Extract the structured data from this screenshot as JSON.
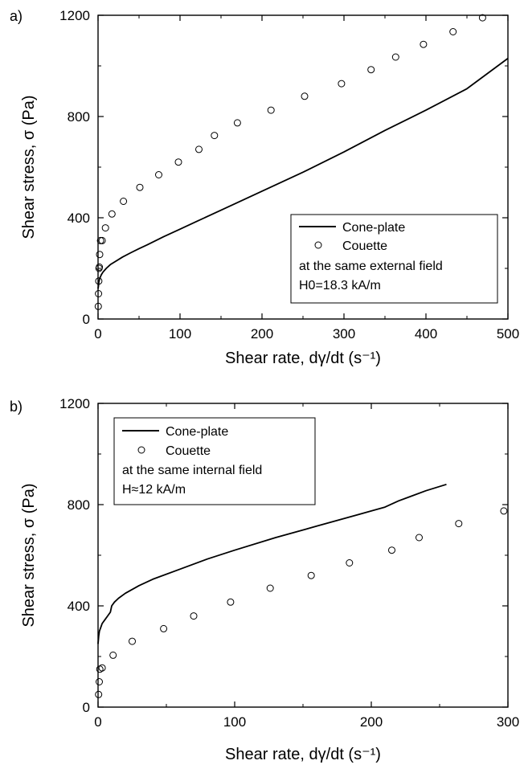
{
  "chart_data": [
    {
      "type": "line",
      "panel_label": "a)",
      "xlabel": "Shear rate, dγ/dt (s⁻¹)",
      "ylabel": "Shear stress, σ (Pa)",
      "xlim": [
        0,
        500
      ],
      "ylim": [
        0,
        1200
      ],
      "xticks": [
        0,
        100,
        200,
        300,
        400,
        500
      ],
      "yticks": [
        0,
        400,
        800,
        1200
      ],
      "legend_position": "bottom-right",
      "legend_note_1": "at the same external field",
      "legend_note_2": "H0=18.3 kA/m",
      "series": [
        {
          "name": "Cone-plate",
          "style": "line",
          "color": "#000000",
          "x": [
            0,
            0.5,
            1,
            2,
            4,
            6,
            10,
            15,
            20,
            30,
            40,
            50,
            60,
            80,
            100,
            120,
            150,
            200,
            250,
            300,
            350,
            400,
            450,
            500
          ],
          "y": [
            120,
            130,
            145,
            160,
            175,
            185,
            200,
            215,
            225,
            245,
            262,
            278,
            293,
            325,
            355,
            385,
            430,
            505,
            580,
            660,
            745,
            825,
            910,
            1030
          ]
        },
        {
          "name": "Couette",
          "style": "open-circle",
          "color": "#000000",
          "x": [
            0.3,
            0.6,
            0.9,
            1.2,
            1.6,
            2,
            3,
            5,
            9,
            17,
            31,
            51,
            74,
            98,
            123,
            142,
            170,
            211,
            252,
            297,
            333,
            363,
            397,
            433,
            469
          ],
          "y": [
            50,
            100,
            150,
            200,
            205,
            255,
            310,
            310,
            360,
            415,
            465,
            520,
            570,
            620,
            670,
            725,
            775,
            825,
            880,
            930,
            985,
            1035,
            1085,
            1135,
            1190
          ]
        }
      ]
    },
    {
      "type": "line",
      "panel_label": "b)",
      "xlabel": "Shear rate, dγ/dt (s⁻¹)",
      "ylabel": "Shear stress, σ (Pa)",
      "xlim": [
        0,
        300
      ],
      "ylim": [
        0,
        1200
      ],
      "xticks": [
        0,
        100,
        200,
        300
      ],
      "yticks": [
        0,
        400,
        800,
        1200
      ],
      "legend_position": "top-left",
      "legend_note_1": "at the same internal field",
      "legend_note_2": "H≈12 kA/m",
      "series": [
        {
          "name": "Cone-plate",
          "style": "line",
          "color": "#000000",
          "x": [
            0,
            0.5,
            1,
            2,
            3,
            5,
            7,
            9,
            10,
            12,
            15,
            20,
            30,
            40,
            60,
            80,
            100,
            130,
            160,
            190,
            210,
            220,
            240,
            255
          ],
          "y": [
            250,
            280,
            300,
            315,
            330,
            345,
            360,
            375,
            400,
            415,
            430,
            450,
            480,
            505,
            545,
            585,
            620,
            670,
            715,
            760,
            790,
            815,
            855,
            880
          ]
        },
        {
          "name": "Couette",
          "style": "open-circle",
          "color": "#000000",
          "x": [
            0.4,
            0.9,
            1.3,
            3,
            11,
            25,
            48,
            70,
            97,
            126,
            156,
            184,
            215,
            235,
            264,
            297
          ],
          "y": [
            50,
            100,
            150,
            155,
            205,
            260,
            310,
            360,
            415,
            470,
            520,
            570,
            620,
            670,
            725,
            775
          ]
        }
      ]
    }
  ]
}
